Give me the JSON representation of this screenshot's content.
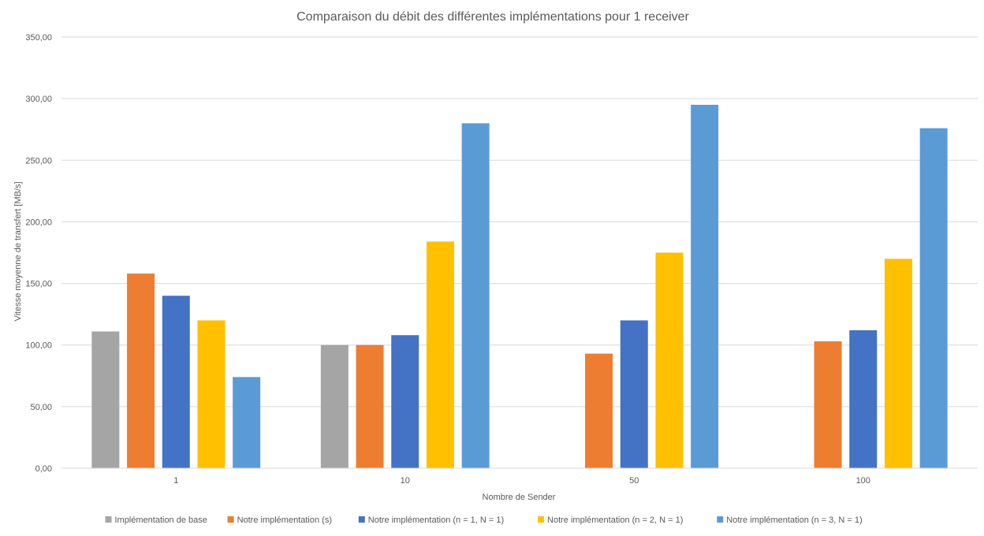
{
  "chart_data": {
    "type": "bar",
    "title": "Comparaison du débit des différentes implémentations pour 1 receiver",
    "xlabel": "Nombre de Sender",
    "ylabel": "Vitesse moyenne de transfert [MB/s]",
    "categories": [
      "1",
      "10",
      "50",
      "100"
    ],
    "ylim": [
      0,
      350
    ],
    "yticks": [
      0,
      50,
      100,
      150,
      200,
      250,
      300,
      350
    ],
    "ytick_labels": [
      "0,00",
      "50,00",
      "100,00",
      "150,00",
      "200,00",
      "250,00",
      "300,00",
      "350,00"
    ],
    "grid": true,
    "legend_position": "bottom",
    "series": [
      {
        "name": "Implémentation de base",
        "color": "#a5a5a5",
        "values": [
          111,
          100,
          null,
          null
        ]
      },
      {
        "name": "Notre implémentation (s)",
        "color": "#ed7d31",
        "values": [
          158,
          100,
          93,
          103
        ]
      },
      {
        "name": "Notre implémentation (n = 1, N = 1)",
        "color": "#4472c4",
        "values": [
          140,
          108,
          120,
          112
        ]
      },
      {
        "name": "Notre implémentation (n = 2, N = 1)",
        "color": "#ffc000",
        "values": [
          120,
          184,
          175,
          170
        ]
      },
      {
        "name": "Notre implémentation (n = 3, N = 1)",
        "color": "#5b9bd5",
        "values": [
          74,
          280,
          295,
          276
        ]
      }
    ]
  }
}
